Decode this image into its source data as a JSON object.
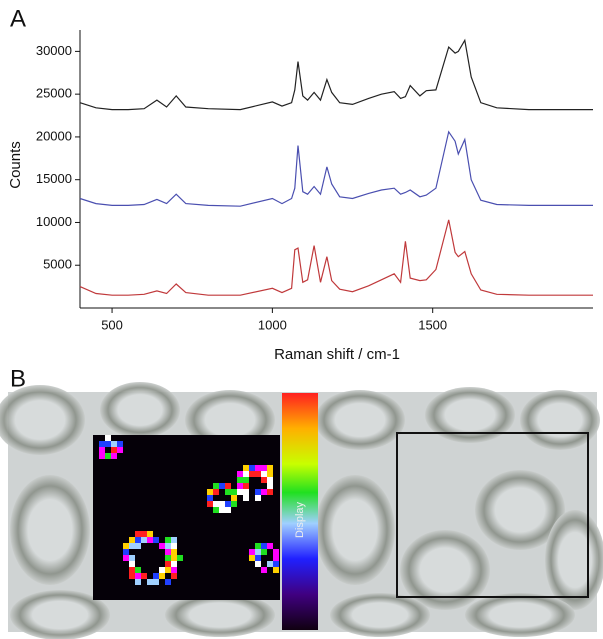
{
  "panels": {
    "a": "A",
    "b": "B"
  },
  "colorbar_label": "Display",
  "chart_data": {
    "type": "line",
    "xlabel": "Raman shift / cm-1",
    "ylabel": "Counts",
    "x": [
      400,
      450,
      500,
      550,
      600,
      640,
      670,
      700,
      730,
      800,
      900,
      1000,
      1030,
      1060,
      1070,
      1080,
      1095,
      1110,
      1130,
      1150,
      1170,
      1185,
      1210,
      1250,
      1300,
      1340,
      1380,
      1400,
      1415,
      1430,
      1460,
      1480,
      1510,
      1550,
      1570,
      1580,
      1600,
      1620,
      1650,
      1700,
      1800,
      1900,
      2000
    ],
    "series": [
      {
        "color": "#222222",
        "values": [
          24000,
          23400,
          23200,
          23200,
          23300,
          24300,
          23500,
          24800,
          23500,
          23300,
          23200,
          24100,
          23600,
          24000,
          25500,
          28800,
          24800,
          24300,
          25200,
          24300,
          26700,
          25200,
          24000,
          23800,
          24500,
          25000,
          25300,
          24500,
          24700,
          26000,
          24800,
          25400,
          25500,
          30500,
          29800,
          30000,
          31300,
          27000,
          24000,
          23400,
          23200,
          23200,
          23200
        ]
      },
      {
        "color": "#4a4fb0",
        "values": [
          12800,
          12200,
          12000,
          12000,
          12100,
          12700,
          12200,
          13300,
          12200,
          12000,
          11900,
          12800,
          12200,
          12800,
          14000,
          19000,
          13600,
          13300,
          14200,
          13300,
          16500,
          14500,
          13000,
          12800,
          13400,
          13800,
          14000,
          13300,
          13500,
          13800,
          13000,
          13200,
          14000,
          20600,
          19500,
          18000,
          19700,
          15000,
          12600,
          12100,
          12000,
          12000,
          12000
        ]
      },
      {
        "color": "#c0393b",
        "values": [
          2500,
          1700,
          1500,
          1500,
          1600,
          2000,
          1700,
          2800,
          1800,
          1500,
          1500,
          2300,
          1800,
          2300,
          6800,
          7000,
          3000,
          3300,
          7300,
          3000,
          6000,
          3200,
          2200,
          1900,
          2600,
          3300,
          4000,
          3000,
          7800,
          3500,
          3200,
          3300,
          4500,
          10300,
          6500,
          6000,
          6600,
          4000,
          2100,
          1600,
          1500,
          1500,
          1500
        ]
      }
    ],
    "xlim": [
      400,
      2000
    ],
    "xticks": [
      500,
      1000,
      1500
    ],
    "ylim": [
      0,
      32500
    ],
    "yticks": [
      5000,
      10000,
      15000,
      20000,
      25000,
      30000
    ]
  }
}
